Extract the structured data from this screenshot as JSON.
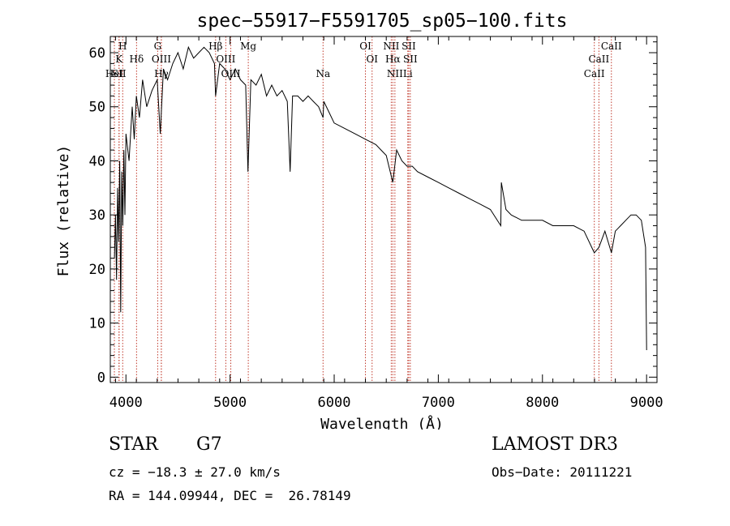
{
  "chart_data": {
    "type": "line",
    "title": "spec−55917−F5591705_sp05−100.fits",
    "xlabel": "Wavelength (Å)",
    "ylabel": "Flux (relative)",
    "xlim": [
      3850,
      9100
    ],
    "ylim": [
      -1,
      63
    ],
    "xticks": [
      {
        "value": 4000,
        "label": "4000"
      },
      {
        "value": 5000,
        "label": "5000"
      },
      {
        "value": 6000,
        "label": "6000"
      },
      {
        "value": 7000,
        "label": "7000"
      },
      {
        "value": 8000,
        "label": "8000"
      },
      {
        "value": 9000,
        "label": "9000"
      }
    ],
    "yticks": [
      {
        "value": 0,
        "label": "0"
      },
      {
        "value": 10,
        "label": "10"
      },
      {
        "value": 20,
        "label": "20"
      },
      {
        "value": 30,
        "label": "30"
      },
      {
        "value": 40,
        "label": "40"
      },
      {
        "value": 50,
        "label": "50"
      },
      {
        "value": 60,
        "label": "60"
      }
    ],
    "series": [
      {
        "name": "flux",
        "x": [
          3890,
          3900,
          3910,
          3920,
          3930,
          3940,
          3950,
          3960,
          3970,
          3980,
          3990,
          4000,
          4030,
          4060,
          4080,
          4100,
          4130,
          4160,
          4200,
          4250,
          4300,
          4330,
          4360,
          4400,
          4450,
          4500,
          4550,
          4600,
          4650,
          4700,
          4750,
          4800,
          4850,
          4861,
          4900,
          4950,
          5000,
          5050,
          5100,
          5150,
          5172,
          5200,
          5250,
          5300,
          5350,
          5400,
          5450,
          5500,
          5550,
          5577,
          5600,
          5650,
          5700,
          5750,
          5800,
          5850,
          5893,
          5900,
          5950,
          6000,
          6100,
          6200,
          6300,
          6400,
          6450,
          6500,
          6563,
          6600,
          6650,
          6700,
          6750,
          6800,
          6900,
          7000,
          7100,
          7200,
          7300,
          7400,
          7500,
          7600,
          7605,
          7650,
          7700,
          7800,
          7900,
          8000,
          8100,
          8200,
          8300,
          8400,
          8498,
          8542,
          8600,
          8662,
          8700,
          8750,
          8800,
          8850,
          8900,
          8950,
          8990,
          9000
        ],
        "y": [
          22,
          30,
          18,
          35,
          25,
          40,
          12,
          38,
          28,
          42,
          30,
          45,
          40,
          50,
          44,
          52,
          48,
          55,
          50,
          53,
          55,
          45,
          57,
          55,
          58,
          60,
          57,
          61,
          59,
          60,
          61,
          60,
          58,
          52,
          58,
          57,
          55,
          57,
          55,
          54,
          38,
          55,
          54,
          56,
          52,
          54,
          52,
          53,
          51,
          38,
          52,
          52,
          51,
          52,
          51,
          50,
          48,
          51,
          49,
          47,
          46,
          45,
          44,
          43,
          42,
          41,
          36,
          42,
          40,
          39,
          39,
          38,
          37,
          36,
          35,
          34,
          33,
          32,
          31,
          28,
          36,
          31,
          30,
          29,
          29,
          29,
          28,
          28,
          28,
          27,
          23,
          24,
          27,
          23,
          27,
          28,
          29,
          30,
          30,
          29,
          24,
          5
        ]
      }
    ],
    "lines": [
      {
        "wl": 3889,
        "label": "HeI",
        "row": 3
      },
      {
        "wl": 3934,
        "label": "K",
        "row": 2
      },
      {
        "wl": 3934,
        "label": "SII",
        "row": 3
      },
      {
        "wl": 3969,
        "label": "H",
        "row": 1
      },
      {
        "wl": 4102,
        "label": "Hδ",
        "row": 2
      },
      {
        "wl": 4305,
        "label": "G",
        "row": 1
      },
      {
        "wl": 4340,
        "label": "OIII",
        "row": 2
      },
      {
        "wl": 4340,
        "label": "Hγ",
        "row": 3
      },
      {
        "wl": 4861,
        "label": "Hβ",
        "row": 1
      },
      {
        "wl": 4959,
        "label": "OIII",
        "row": 2
      },
      {
        "wl": 5007,
        "label": "OIII",
        "row": 3
      },
      {
        "wl": 5175,
        "label": "Mg",
        "row": 1
      },
      {
        "wl": 5893,
        "label": "Na",
        "row": 3
      },
      {
        "wl": 6300,
        "label": "OI",
        "row": 1
      },
      {
        "wl": 6364,
        "label": "OI",
        "row": 2
      },
      {
        "wl": 6548,
        "label": "NII",
        "row": 1
      },
      {
        "wl": 6563,
        "label": "Hα",
        "row": 2
      },
      {
        "wl": 6583,
        "label": "NII",
        "row": 3
      },
      {
        "wl": 6707,
        "label": "Li",
        "row": 3
      },
      {
        "wl": 6716,
        "label": "SII",
        "row": 1
      },
      {
        "wl": 6731,
        "label": "SII",
        "row": 2
      },
      {
        "wl": 8498,
        "label": "CaII",
        "row": 3
      },
      {
        "wl": 8542,
        "label": "CaII",
        "row": 2
      },
      {
        "wl": 8662,
        "label": "CaII",
        "row": 1
      }
    ]
  },
  "info": {
    "class": "STAR",
    "subclass": "G7",
    "survey": "LAMOST DR3",
    "cz": "cz = −18.3 ± 27.0 km/s",
    "obs_date": "Obs−Date: 20111221",
    "radec": "RA = 144.09944, DEC =  26.78149"
  }
}
